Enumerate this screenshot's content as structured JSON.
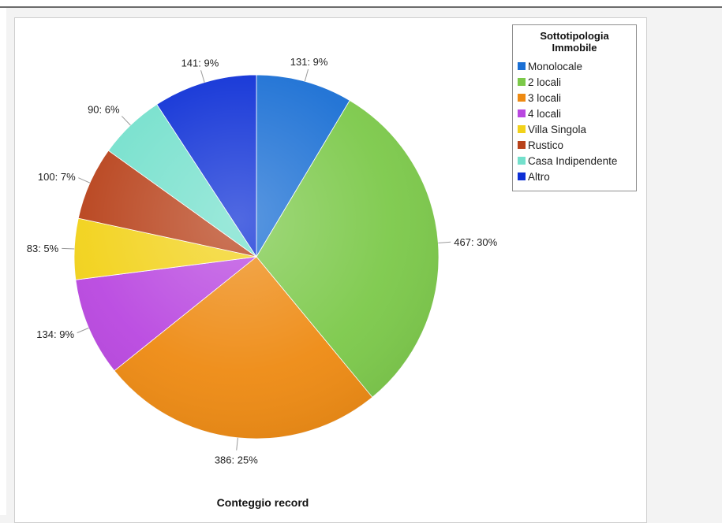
{
  "chart_data": {
    "type": "pie",
    "title": "Conteggio record",
    "legend_title": "Sottotipologia Immobile",
    "legend_position": "top-right",
    "slices": [
      {
        "label": "Monolocale",
        "value": 131,
        "percent": "9%",
        "color": "#1a6fd4"
      },
      {
        "label": "2 locali",
        "value": 467,
        "percent": "30%",
        "color": "#7cc94a"
      },
      {
        "label": "3 locali",
        "value": 386,
        "percent": "25%",
        "color": "#ee8a12"
      },
      {
        "label": "4 locali",
        "value": 134,
        "percent": "9%",
        "color": "#b947e0"
      },
      {
        "label": "Villa Singola",
        "value": 83,
        "percent": "5%",
        "color": "#f2d21a"
      },
      {
        "label": "Rustico",
        "value": 100,
        "percent": "7%",
        "color": "#b8421b"
      },
      {
        "label": "Casa Indipendente",
        "value": 90,
        "percent": "6%",
        "color": "#74e0cc"
      },
      {
        "label": "Altro",
        "value": 141,
        "percent": "9%",
        "color": "#0d2fd6"
      }
    ]
  }
}
